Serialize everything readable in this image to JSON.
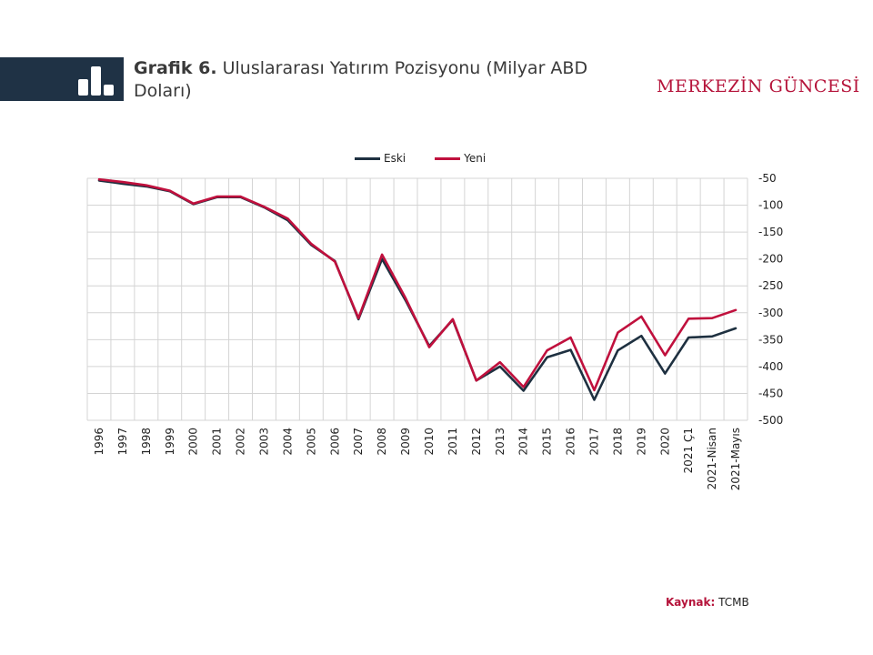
{
  "header": {
    "title_bold": "Grafik 6.",
    "title_rest": " Uluslararası Yatırım Pozisyonu (Milyar ABD Doları)",
    "brand": "MERKEZİN GÜNCESİ",
    "icon": "bar-chart-icon"
  },
  "source": {
    "label": "Kaynak:",
    "value": " TCMB"
  },
  "colors": {
    "eski": "#1e3040",
    "yeni": "#c0103d",
    "header_bg": "#1f3245",
    "brand": "#b5133a"
  },
  "chart_data": {
    "type": "line",
    "x": [
      "1996",
      "1997",
      "1998",
      "1999",
      "2000",
      "2001",
      "2002",
      "2003",
      "2004",
      "2005",
      "2006",
      "2007",
      "2008",
      "2009",
      "2010",
      "2011",
      "2012",
      "2013",
      "2014",
      "2015",
      "2016",
      "2017",
      "2018",
      "2019",
      "2020",
      "2021 Ç1",
      "2021-Nisan",
      "2021-Mayıs"
    ],
    "series": [
      {
        "name": "Eski",
        "color": "#1e3040",
        "values": [
          -54,
          -60,
          -65,
          -74,
          -98,
          -85,
          -85,
          -104,
          -128,
          -174,
          -204,
          -312,
          -200,
          -277,
          -362,
          -313,
          -426,
          -400,
          -445,
          -383,
          -369,
          -462,
          -370,
          -343,
          -413,
          -346,
          -344,
          -329
        ]
      },
      {
        "name": "Yeni",
        "color": "#c0103d",
        "values": [
          -52,
          -57,
          -63,
          -73,
          -97,
          -84,
          -84,
          -103,
          -125,
          -172,
          -205,
          -310,
          -192,
          -273,
          -364,
          -312,
          -426,
          -392,
          -438,
          -370,
          -346,
          -444,
          -337,
          -307,
          -379,
          -311,
          -310,
          -295
        ]
      }
    ],
    "ylim": [
      -500,
      -50
    ],
    "yticks": [
      -50,
      -100,
      -150,
      -200,
      -250,
      -300,
      -350,
      -400,
      -450,
      -500
    ],
    "y_axis_position": "right",
    "grid": true,
    "legend": "top-center"
  }
}
